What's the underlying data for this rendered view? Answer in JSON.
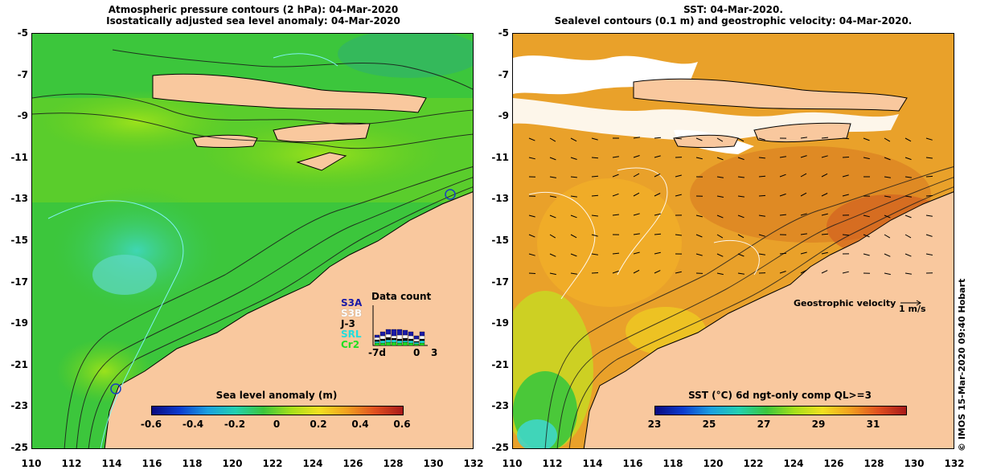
{
  "left_panel": {
    "title_line1": "Atmospheric pressure contours (2 hPa): 04-Mar-2020",
    "title_line2": "Isostatically adjusted sea level anomaly: 04-Mar-2020",
    "colorbar": {
      "label": "Sea level anomaly (m)",
      "ticks": [
        "-0.6",
        "-0.4",
        "-0.2",
        "0",
        "0.2",
        "0.4",
        "0.6"
      ]
    },
    "data_count": {
      "title": "Data count",
      "satellites": [
        "S3A",
        "S3B",
        "J-3",
        "SRL",
        "Cr2"
      ],
      "satellite_colors": [
        "#1a1aa6",
        "#ffffff",
        "#000000",
        "#22dddd",
        "#22dd22"
      ],
      "axis_labels": [
        "-7d",
        "0",
        "3"
      ]
    }
  },
  "right_panel": {
    "title_line1": "SST: 04-Mar-2020.",
    "title_line2": "Sealevel contours (0.1 m) and geostrophic velocity: 04-Mar-2020.",
    "colorbar": {
      "label": "SST (°C) 6d ngt-only comp QL>=3",
      "ticks": [
        "23",
        "25",
        "27",
        "29",
        "31"
      ]
    },
    "geostrophic_label": "Geostrophic velocity",
    "velocity_scale": "1 m/s"
  },
  "y_ticks": [
    "-5",
    "-7",
    "-9",
    "-11",
    "-13",
    "-15",
    "-17",
    "-19",
    "-21",
    "-23",
    "-25"
  ],
  "x_ticks": [
    "110",
    "112",
    "114",
    "116",
    "118",
    "120",
    "122",
    "124",
    "126",
    "128",
    "130",
    "132"
  ],
  "credit": "© IMOS 15-Mar-2020 09:40 Hobart",
  "colors": {
    "land": "#f9c89e",
    "ocean_left": "#3cc63c",
    "ocean_right": "#e9a12a",
    "cloud": "#ffffff"
  }
}
